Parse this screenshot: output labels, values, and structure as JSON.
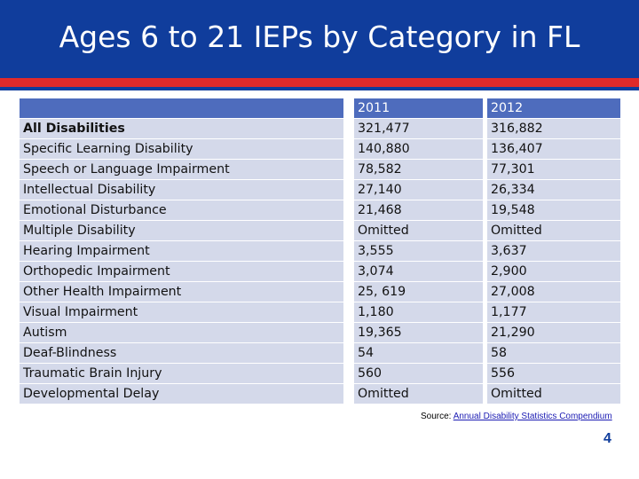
{
  "title": "Ages 6 to 21 IEPs by Category in FL",
  "table": {
    "headers": [
      "",
      "2011",
      "2012"
    ],
    "rows": [
      {
        "category": "All Disabilities",
        "y2011": "321,477",
        "y2012": "316,882"
      },
      {
        "category": "Specific Learning Disability",
        "y2011": "140,880",
        "y2012": "136,407"
      },
      {
        "category": "Speech or Language Impairment",
        "y2011": "78,582",
        "y2012": "77,301"
      },
      {
        "category": "Intellectual Disability",
        "y2011": "27,140",
        "y2012": "26,334"
      },
      {
        "category": "Emotional Disturbance",
        "y2011": "21,468",
        "y2012": "19,548"
      },
      {
        "category": "Multiple Disability",
        "y2011": "Omitted",
        "y2012": "Omitted"
      },
      {
        "category": "Hearing Impairment",
        "y2011": "3,555",
        "y2012": "3,637"
      },
      {
        "category": "Orthopedic Impairment",
        "y2011": "3,074",
        "y2012": "2,900"
      },
      {
        "category": "Other Health Impairment",
        "y2011": "25, 619",
        "y2012": "27,008"
      },
      {
        "category": "Visual Impairment",
        "y2011": "1,180",
        "y2012": "1,177"
      },
      {
        "category": "Autism",
        "y2011": "19,365",
        "y2012": "21,290"
      },
      {
        "category": "Deaf-Blindness",
        "y2011": "54",
        "y2012": "58"
      },
      {
        "category": "Traumatic Brain Injury",
        "y2011": "560",
        "y2012": "556"
      },
      {
        "category": "Developmental Delay",
        "y2011": "Omitted",
        "y2012": "Omitted"
      }
    ]
  },
  "source": {
    "prefix": "Source: ",
    "link_text": "Annual Disability Statistics Compendium"
  },
  "page_number": "4",
  "colors": {
    "title_bar": "#103d9c",
    "accent_red": "#e12a2a",
    "header_fill": "#4e6cbd",
    "row_fill": "#d4d9ea"
  }
}
